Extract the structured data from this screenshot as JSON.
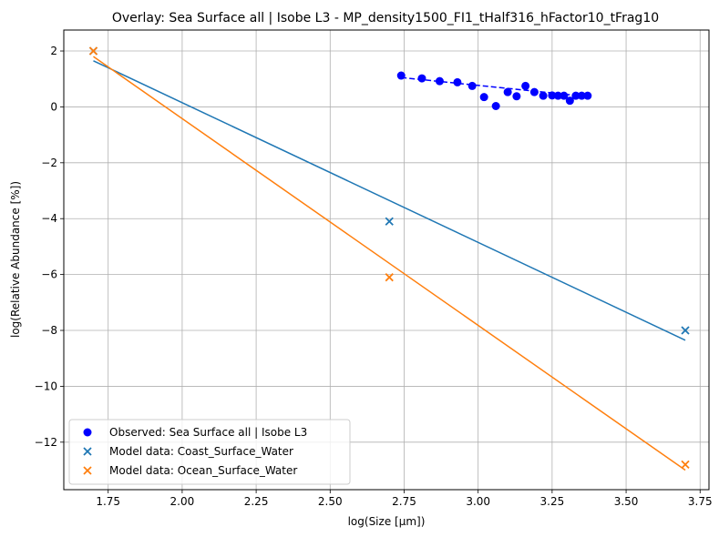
{
  "chart_data": {
    "type": "scatter",
    "title": "Overlay: Sea Surface all | Isobe L3 - MP_density1500_FI1_tHalf316_hFactor10_tFrag10",
    "xlabel": "log(Size [μm])",
    "ylabel": "log(Relative Abundance [%])",
    "xlim": [
      1.6,
      3.78
    ],
    "ylim": [
      -13.7,
      2.75
    ],
    "xticks": [
      1.75,
      2.0,
      2.25,
      2.5,
      2.75,
      3.0,
      3.25,
      3.5,
      3.75
    ],
    "xtick_labels": [
      "1.75",
      "2.00",
      "2.25",
      "2.50",
      "2.75",
      "3.00",
      "3.25",
      "3.50",
      "3.75"
    ],
    "yticks": [
      -12,
      -10,
      -8,
      -6,
      -4,
      -2,
      0,
      2
    ],
    "ytick_labels": [
      "−12",
      "−10",
      "−8",
      "−6",
      "−4",
      "−2",
      "0",
      "2"
    ],
    "grid": true,
    "legend_position": "lower-left",
    "series": [
      {
        "name": "Observed: Sea Surface all | Isobe L3",
        "kind": "scatter-dot",
        "color": "#0000ff",
        "x": [
          2.74,
          2.81,
          2.87,
          2.93,
          2.98,
          3.02,
          3.06,
          3.1,
          3.13,
          3.16,
          3.19,
          3.22,
          3.25,
          3.27,
          3.29,
          3.31,
          3.33,
          3.35,
          3.37
        ],
        "y": [
          1.12,
          1.02,
          0.92,
          0.88,
          0.75,
          0.35,
          0.03,
          0.53,
          0.38,
          0.75,
          0.53,
          0.4,
          0.41,
          0.4,
          0.4,
          0.22,
          0.4,
          0.4,
          0.4
        ],
        "fit": {
          "style": "dashed",
          "x": [
            2.74,
            3.37
          ],
          "y": [
            1.05,
            0.37
          ]
        }
      },
      {
        "name": "Model data: Coast_Surface_Water",
        "kind": "scatter-x",
        "color": "#1f77b4",
        "x": [
          1.7,
          2.7,
          3.7
        ],
        "y": [
          2.0,
          -4.1,
          -8.0
        ],
        "fit": {
          "style": "solid",
          "x": [
            1.7,
            3.7
          ],
          "y": [
            1.65,
            -8.35
          ]
        }
      },
      {
        "name": "Model data: Ocean_Surface_Water",
        "kind": "scatter-x",
        "color": "#ff7f0e",
        "x": [
          1.7,
          2.7,
          3.7
        ],
        "y": [
          2.0,
          -6.1,
          -12.8
        ],
        "fit": {
          "style": "solid",
          "x": [
            1.7,
            3.7
          ],
          "y": [
            1.8,
            -13.0
          ]
        }
      }
    ]
  }
}
